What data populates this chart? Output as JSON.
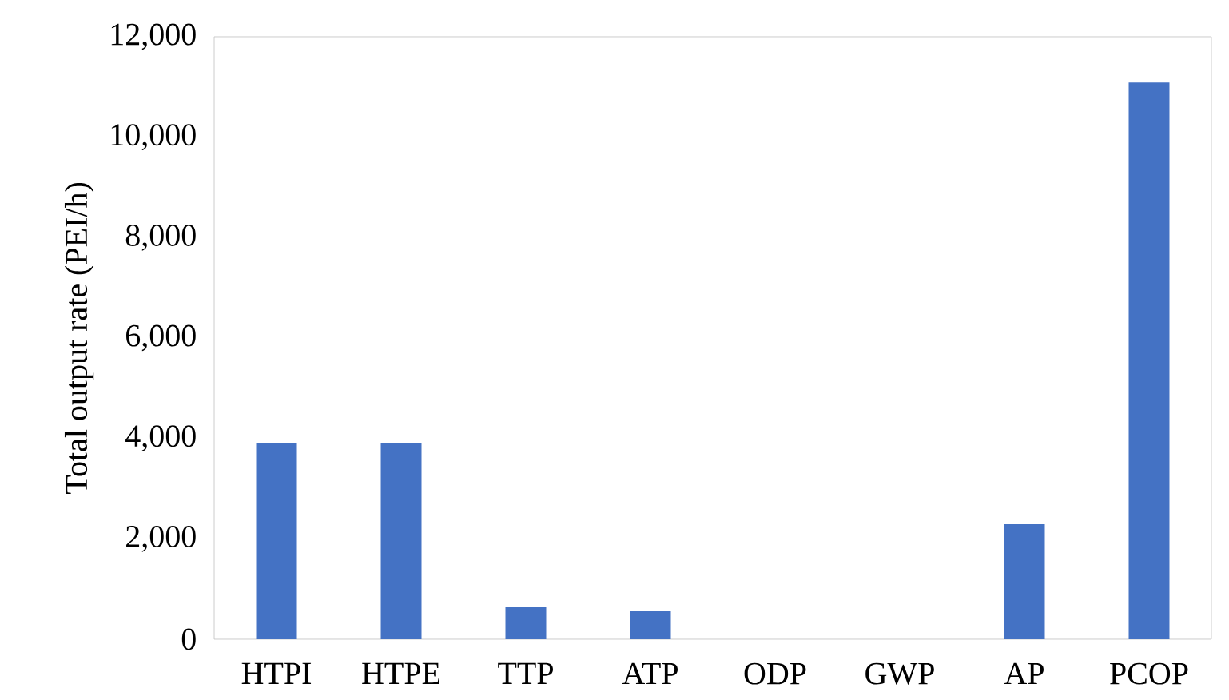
{
  "chart_data": {
    "type": "bar",
    "ylabel": "Total output rate (PEI/h)",
    "categories": [
      "HTPI",
      "HTPE",
      "TTP",
      "ATP",
      "ODP",
      "GWP",
      "AP",
      "PCOP"
    ],
    "values": [
      3900,
      3900,
      650,
      570,
      0,
      0,
      2290,
      11090
    ],
    "color": "#4472c4",
    "ylim": [
      0,
      12000
    ],
    "yticks": [
      0,
      {
        "value": 2000,
        "label": "2,000"
      },
      {
        "value": 4000,
        "label": "4,000"
      },
      {
        "value": 6000,
        "label": "6,000"
      },
      {
        "value": 8000,
        "label": "8,000"
      },
      {
        "value": 10000,
        "label": "10,000"
      },
      {
        "value": 12000,
        "label": "12,000"
      }
    ]
  }
}
